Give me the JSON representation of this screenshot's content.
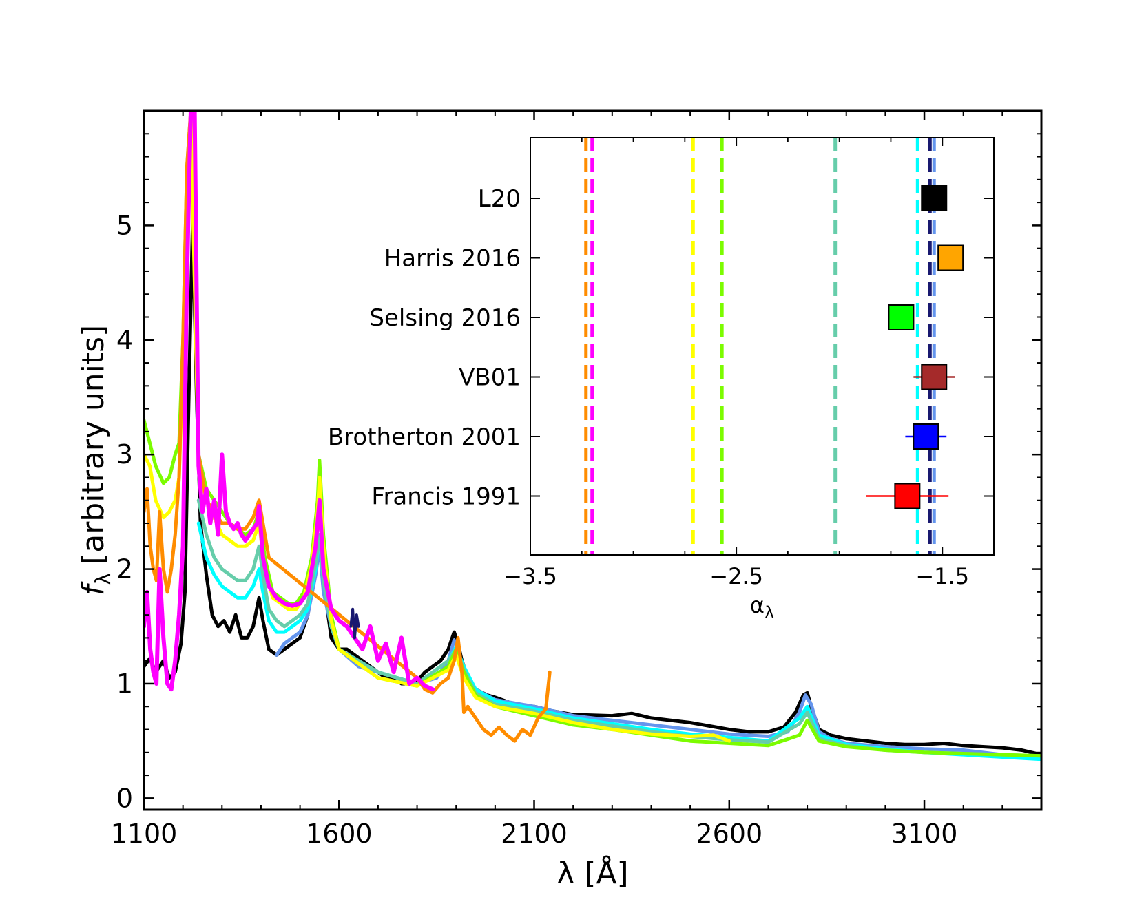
{
  "chart_data": [
    {
      "type": "line",
      "title": "",
      "xlabel": "λ [Å]",
      "ylabel": "[arbitrary units]",
      "ylabel_symbol": "f",
      "ylabel_subscript": "λ",
      "xlim": [
        1100,
        3400
      ],
      "ylim": [
        -0.1,
        6.0
      ],
      "xticks": [
        1100,
        1600,
        2100,
        2600,
        3100
      ],
      "yticks": [
        0,
        1,
        2,
        3,
        4,
        5
      ],
      "series": [
        {
          "name": "black",
          "color": "#000000",
          "width": 5,
          "x": [
            1100,
            1115,
            1130,
            1150,
            1165,
            1180,
            1195,
            1205,
            1215,
            1225,
            1235,
            1245,
            1260,
            1275,
            1290,
            1305,
            1320,
            1335,
            1350,
            1365,
            1380,
            1395,
            1405,
            1420,
            1440,
            1460,
            1480,
            1500,
            1520,
            1540,
            1550,
            1560,
            1580,
            1600,
            1620,
            1640,
            1660,
            1680,
            1700,
            1720,
            1740,
            1760,
            1780,
            1800,
            1820,
            1840,
            1860,
            1880,
            1895,
            1905,
            1915,
            1930,
            1950,
            1980,
            2000,
            2050,
            2100,
            2150,
            2200,
            2300,
            2350,
            2400,
            2450,
            2500,
            2550,
            2600,
            2650,
            2700,
            2740,
            2770,
            2790,
            2800,
            2810,
            2830,
            2860,
            2900,
            2950,
            3000,
            3050,
            3100,
            3150,
            3200,
            3250,
            3300,
            3350,
            3400
          ],
          "y": [
            1.15,
            1.22,
            1.1,
            1.2,
            1.05,
            1.1,
            1.35,
            1.8,
            3.5,
            5.05,
            3.5,
            2.4,
            1.95,
            1.6,
            1.5,
            1.55,
            1.45,
            1.6,
            1.4,
            1.4,
            1.5,
            1.75,
            1.55,
            1.3,
            1.25,
            1.3,
            1.35,
            1.4,
            1.6,
            2.0,
            2.3,
            1.9,
            1.4,
            1.3,
            1.3,
            1.25,
            1.2,
            1.15,
            1.1,
            1.05,
            1.05,
            1.0,
            1.0,
            1.02,
            1.1,
            1.15,
            1.2,
            1.3,
            1.45,
            1.35,
            1.2,
            1.05,
            0.95,
            0.9,
            0.88,
            0.82,
            0.8,
            0.76,
            0.73,
            0.72,
            0.74,
            0.7,
            0.68,
            0.66,
            0.63,
            0.6,
            0.58,
            0.58,
            0.62,
            0.75,
            0.9,
            0.92,
            0.8,
            0.6,
            0.55,
            0.52,
            0.5,
            0.48,
            0.47,
            0.47,
            0.48,
            0.46,
            0.45,
            0.44,
            0.42,
            0.38
          ]
        },
        {
          "name": "royalblue",
          "color": "#6495ed",
          "width": 5,
          "x": [
            1440,
            1460,
            1480,
            1500,
            1520,
            1540,
            1550,
            1560,
            1580,
            1600,
            1650,
            1700,
            1750,
            1800,
            1850,
            1880,
            1895,
            1905,
            1920,
            1950,
            2000,
            2100,
            2200,
            2300,
            2400,
            2500,
            2600,
            2700,
            2750,
            2780,
            2795,
            2810,
            2830,
            2860,
            2900,
            3000,
            3100,
            3200,
            3300,
            3400
          ],
          "y": [
            1.25,
            1.35,
            1.4,
            1.45,
            1.6,
            1.95,
            2.2,
            1.8,
            1.5,
            1.3,
            1.15,
            1.1,
            1.05,
            1.0,
            1.05,
            1.2,
            1.38,
            1.3,
            1.1,
            0.95,
            0.86,
            0.8,
            0.72,
            0.68,
            0.64,
            0.6,
            0.56,
            0.54,
            0.58,
            0.75,
            0.9,
            0.82,
            0.58,
            0.52,
            0.48,
            0.45,
            0.43,
            0.42,
            0.38,
            0.36
          ]
        },
        {
          "name": "cyan",
          "color": "#00ffff",
          "width": 5,
          "x": [
            1240,
            1260,
            1280,
            1300,
            1320,
            1340,
            1360,
            1380,
            1395,
            1405,
            1420,
            1440,
            1460,
            1480,
            1500,
            1520,
            1540,
            1550,
            1560,
            1580,
            1600,
            1700,
            1800,
            1880,
            1900,
            1920,
            1950,
            2000,
            2100,
            2200,
            2300,
            2400,
            2500,
            2600,
            2700,
            2780,
            2800,
            2830,
            2900,
            3000,
            3100,
            3200,
            3300,
            3400
          ],
          "y": [
            2.4,
            2.1,
            1.95,
            1.85,
            1.8,
            1.75,
            1.75,
            1.85,
            2.0,
            1.8,
            1.55,
            1.45,
            1.45,
            1.5,
            1.55,
            1.65,
            2.0,
            2.3,
            1.9,
            1.5,
            1.3,
            1.1,
            1.0,
            1.2,
            1.32,
            1.15,
            0.95,
            0.85,
            0.78,
            0.7,
            0.65,
            0.6,
            0.56,
            0.53,
            0.5,
            0.7,
            0.8,
            0.55,
            0.47,
            0.43,
            0.4,
            0.38,
            0.36,
            0.34
          ]
        },
        {
          "name": "mediumaquamarine",
          "color": "#66cdaa",
          "width": 5,
          "x": [
            1240,
            1260,
            1280,
            1300,
            1320,
            1340,
            1360,
            1380,
            1395,
            1405,
            1420,
            1440,
            1460,
            1480,
            1500,
            1520,
            1540,
            1550,
            1560,
            1580,
            1600,
            1700,
            1800,
            1880,
            1900,
            1920,
            1950,
            2000,
            2100,
            2200,
            2300,
            2400,
            2500,
            2600,
            2700,
            2780,
            2800,
            2830,
            2900,
            3000,
            3100,
            3200,
            3300,
            3400
          ],
          "y": [
            2.6,
            2.3,
            2.1,
            2.0,
            1.95,
            1.9,
            1.9,
            2.0,
            2.2,
            1.95,
            1.65,
            1.55,
            1.5,
            1.55,
            1.6,
            1.7,
            2.05,
            2.3,
            1.9,
            1.5,
            1.3,
            1.1,
            1.0,
            1.2,
            1.3,
            1.12,
            0.92,
            0.82,
            0.76,
            0.68,
            0.63,
            0.58,
            0.54,
            0.51,
            0.49,
            0.65,
            0.75,
            0.52,
            0.46,
            0.42,
            0.4,
            0.39,
            0.38,
            0.37
          ]
        },
        {
          "name": "lawngreen",
          "color": "#7cfc00",
          "width": 5,
          "x": [
            1100,
            1115,
            1130,
            1150,
            1165,
            1180,
            1190,
            1200,
            1210,
            1220,
            1240,
            1260,
            1280,
            1300,
            1320,
            1340,
            1360,
            1380,
            1395,
            1410,
            1430,
            1450,
            1470,
            1490,
            1510,
            1530,
            1545,
            1550,
            1560,
            1580,
            1600,
            1700,
            1800,
            1880,
            1900,
            1920,
            1950,
            2000,
            2100,
            2200,
            2300,
            2400,
            2500,
            2600,
            2700,
            2780,
            2800,
            2830,
            2900,
            3000,
            3100,
            3200,
            3300,
            3400
          ],
          "y": [
            3.3,
            3.1,
            2.9,
            2.75,
            2.8,
            3.0,
            3.1,
            4.0,
            5.5,
            6.0,
            3.0,
            2.7,
            2.6,
            2.5,
            2.4,
            2.35,
            2.3,
            2.35,
            2.5,
            2.1,
            1.8,
            1.75,
            1.7,
            1.7,
            1.8,
            2.1,
            2.6,
            2.95,
            2.3,
            1.6,
            1.3,
            1.05,
            0.98,
            1.15,
            1.3,
            1.1,
            0.9,
            0.8,
            0.72,
            0.64,
            0.6,
            0.55,
            0.5,
            0.48,
            0.46,
            0.55,
            0.68,
            0.5,
            0.45,
            0.42,
            0.4,
            0.39,
            0.38,
            0.37
          ]
        },
        {
          "name": "yellow",
          "color": "#ffff00",
          "width": 5,
          "x": [
            1100,
            1115,
            1130,
            1150,
            1165,
            1180,
            1190,
            1200,
            1210,
            1220,
            1240,
            1260,
            1280,
            1300,
            1320,
            1340,
            1360,
            1380,
            1395,
            1410,
            1430,
            1450,
            1470,
            1490,
            1510,
            1530,
            1545,
            1550,
            1560,
            1580,
            1600,
            1700,
            1800,
            1880,
            1900,
            1920,
            1950,
            2000,
            2100,
            2200,
            2300,
            2400,
            2500,
            2560,
            2600
          ],
          "y": [
            3.0,
            2.9,
            2.6,
            2.45,
            2.5,
            2.6,
            2.8,
            3.8,
            5.2,
            6.0,
            2.9,
            2.6,
            2.45,
            2.3,
            2.25,
            2.2,
            2.2,
            2.25,
            2.4,
            2.0,
            1.75,
            1.7,
            1.65,
            1.65,
            1.75,
            2.05,
            2.5,
            2.8,
            2.2,
            1.55,
            1.3,
            1.05,
            0.98,
            1.12,
            1.25,
            1.05,
            0.88,
            0.8,
            0.74,
            0.66,
            0.6,
            0.56,
            0.54,
            0.55,
            0.5
          ]
        },
        {
          "name": "darkorange",
          "color": "#ff8c00",
          "width": 5,
          "x": [
            1100,
            1108,
            1116,
            1124,
            1132,
            1140,
            1150,
            1160,
            1170,
            1180,
            1190,
            1200,
            1210,
            1220,
            1230,
            1240,
            1260,
            1280,
            1300,
            1320,
            1340,
            1360,
            1380,
            1395,
            1410,
            1420,
            1800,
            1820,
            1840,
            1860,
            1880,
            1895,
            1905,
            1915,
            1920,
            1930,
            1950,
            1970,
            1990,
            2010,
            2030,
            2050,
            2070,
            2090,
            2110,
            2130,
            2140
          ],
          "y": [
            2.5,
            2.7,
            2.2,
            2.0,
            1.9,
            2.5,
            2.0,
            1.8,
            2.0,
            2.3,
            2.8,
            4.0,
            5.5,
            6.0,
            6.0,
            3.0,
            2.6,
            2.5,
            2.4,
            2.4,
            2.35,
            2.35,
            2.45,
            2.6,
            2.3,
            2.1,
            1.05,
            0.95,
            0.92,
            1.0,
            1.05,
            1.2,
            1.4,
            1.1,
            0.75,
            0.8,
            0.7,
            0.6,
            0.55,
            0.62,
            0.55,
            0.5,
            0.6,
            0.55,
            0.7,
            0.78,
            1.1
          ]
        },
        {
          "name": "magenta",
          "color": "#ff00ff",
          "width": 6,
          "x": [
            1100,
            1108,
            1116,
            1124,
            1132,
            1140,
            1150,
            1160,
            1170,
            1180,
            1190,
            1200,
            1210,
            1220,
            1230,
            1240,
            1250,
            1260,
            1270,
            1280,
            1290,
            1300,
            1310,
            1320,
            1330,
            1340,
            1350,
            1360,
            1370,
            1380,
            1390,
            1395,
            1405,
            1420,
            1440,
            1460,
            1480,
            1500,
            1520,
            1540,
            1550,
            1560,
            1580,
            1600,
            1620,
            1640,
            1660,
            1680,
            1700,
            1720,
            1740,
            1760,
            1780,
            1800,
            1820,
            1840
          ],
          "y": [
            1.5,
            1.8,
            1.3,
            1.1,
            1.0,
            2.0,
            1.4,
            1.0,
            0.95,
            1.2,
            1.6,
            2.2,
            4.5,
            6.0,
            6.0,
            2.9,
            2.5,
            2.7,
            2.4,
            2.6,
            2.3,
            3.0,
            2.5,
            2.4,
            2.35,
            2.4,
            2.3,
            2.25,
            2.3,
            2.35,
            2.4,
            2.55,
            2.1,
            1.85,
            1.75,
            1.7,
            1.68,
            1.7,
            1.8,
            2.2,
            2.6,
            2.0,
            1.65,
            1.55,
            1.5,
            1.4,
            1.3,
            1.5,
            1.2,
            1.35,
            1.1,
            1.4,
            1.0,
            1.05,
            0.98,
            0.95
          ]
        },
        {
          "name": "midnightblue",
          "color": "#191970",
          "width": 4,
          "x": [
            1630,
            1635,
            1640,
            1645,
            1650
          ],
          "y": [
            1.5,
            1.65,
            1.4,
            1.6,
            1.5
          ]
        }
      ]
    },
    {
      "type": "scatter",
      "title": "",
      "xlabel": "α",
      "xlabel_subscript": "λ",
      "xlim": [
        -3.5,
        -1.25
      ],
      "xticks": [
        -3.5,
        -2.5,
        -1.5
      ],
      "xticklabels": [
        "−3.5",
        "−2.5",
        "−1.5"
      ],
      "categories": [
        "L20",
        "Harris 2016",
        "Selsing 2016",
        "VB01",
        "Brotherton 2001",
        "Francis 1991"
      ],
      "points": [
        {
          "label": "L20",
          "x": -1.54,
          "xerr": [
            0.0,
            0.0
          ],
          "color": "#000000"
        },
        {
          "label": "Harris 2016",
          "x": -1.46,
          "xerr": [
            0.0,
            0.0
          ],
          "color": "#ffa500"
        },
        {
          "label": "Selsing 2016",
          "x": -1.7,
          "xerr": [
            0.0,
            0.0
          ],
          "color": "#00ff00"
        },
        {
          "label": "VB01",
          "x": -1.54,
          "xerr": [
            0.1,
            0.1
          ],
          "color": "#a52a2a"
        },
        {
          "label": "Brotherton 2001",
          "x": -1.58,
          "xerr": [
            0.1,
            0.1
          ],
          "color": "#0000ff"
        },
        {
          "label": "Francis 1991",
          "x": -1.67,
          "xerr": [
            0.2,
            0.2
          ],
          "color": "#ff0000"
        }
      ],
      "vlines": [
        {
          "x": -3.23,
          "color": "#ff8c00"
        },
        {
          "x": -3.2,
          "color": "#ff00ff"
        },
        {
          "x": -2.71,
          "color": "#ffff00"
        },
        {
          "x": -2.57,
          "color": "#7cfc00"
        },
        {
          "x": -2.02,
          "color": "#66cdaa"
        },
        {
          "x": -1.62,
          "color": "#00ffff"
        },
        {
          "x": -1.56,
          "color": "#191970"
        },
        {
          "x": -1.54,
          "color": "#6495ed"
        }
      ]
    }
  ]
}
